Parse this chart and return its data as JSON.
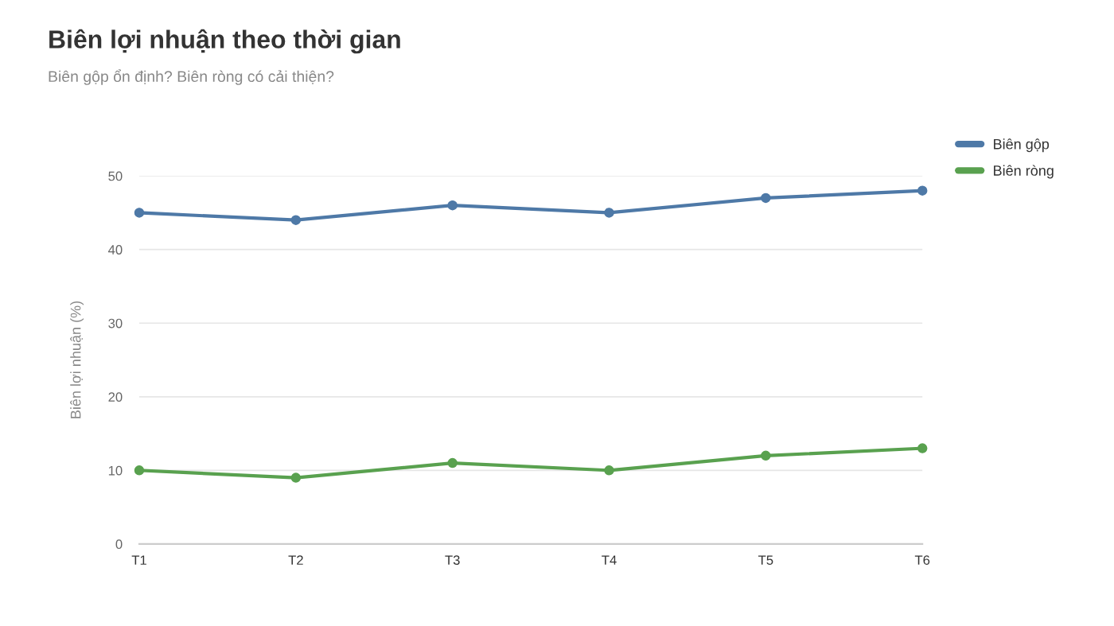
{
  "chart_data": {
    "type": "line",
    "title": "Biên lợi nhuận theo thời gian",
    "subtitle": "Biên gộp ổn định? Biên ròng có cải thiện?",
    "ylabel": "Biên lợi nhuận (%)",
    "categories": [
      "T1",
      "T2",
      "T3",
      "T4",
      "T5",
      "T6"
    ],
    "series": [
      {
        "name": "Biên gộp",
        "color": "#4e79a7",
        "values": [
          45,
          44,
          46,
          45,
          47,
          48
        ]
      },
      {
        "name": "Biên ròng",
        "color": "#59a14f",
        "values": [
          10,
          9,
          11,
          10,
          12,
          13
        ]
      }
    ],
    "ylim": [
      0,
      50
    ],
    "yticks": [
      0,
      10,
      20,
      30,
      40,
      50
    ],
    "grid": "y",
    "legend": "top right",
    "marker": "circle",
    "line_style": "solid"
  }
}
